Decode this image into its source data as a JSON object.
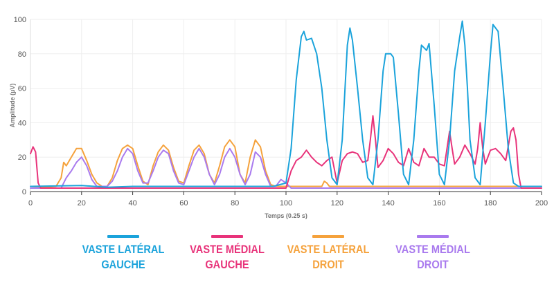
{
  "chart_data": {
    "type": "line",
    "title": "",
    "xlabel": "Temps (0.25 s)",
    "ylabel": "Amplitude (µV)",
    "xlim": [
      0,
      200
    ],
    "ylim": [
      0,
      100
    ],
    "x_ticks": [
      0,
      20,
      40,
      60,
      80,
      100,
      120,
      140,
      160,
      180,
      200
    ],
    "y_ticks": [
      0,
      20,
      40,
      60,
      80,
      100
    ],
    "grid": true,
    "legend_position": "bottom",
    "series": [
      {
        "name": "VASTE LATÉRAL GAUCHE",
        "label_lines": [
          "VASTE LATÉRAL",
          "GAUCHE"
        ],
        "color": "#1BA3DB",
        "points": [
          [
            0,
            3
          ],
          [
            20,
            3.5
          ],
          [
            30,
            2.5
          ],
          [
            40,
            3
          ],
          [
            60,
            3
          ],
          [
            80,
            3
          ],
          [
            95,
            3
          ],
          [
            100,
            5
          ],
          [
            102,
            25
          ],
          [
            104,
            65
          ],
          [
            106,
            90
          ],
          [
            107,
            93
          ],
          [
            108,
            88
          ],
          [
            110,
            89
          ],
          [
            112,
            80
          ],
          [
            114,
            60
          ],
          [
            116,
            30
          ],
          [
            118,
            8
          ],
          [
            120,
            4
          ],
          [
            122,
            30
          ],
          [
            124,
            85
          ],
          [
            125,
            95
          ],
          [
            126,
            88
          ],
          [
            128,
            60
          ],
          [
            130,
            30
          ],
          [
            132,
            8
          ],
          [
            134,
            4
          ],
          [
            136,
            30
          ],
          [
            138,
            70
          ],
          [
            139,
            80
          ],
          [
            141,
            80
          ],
          [
            142,
            78
          ],
          [
            144,
            45
          ],
          [
            146,
            10
          ],
          [
            148,
            4
          ],
          [
            150,
            30
          ],
          [
            152,
            70
          ],
          [
            153,
            85
          ],
          [
            155,
            82
          ],
          [
            156,
            86
          ],
          [
            158,
            50
          ],
          [
            160,
            10
          ],
          [
            162,
            4
          ],
          [
            164,
            30
          ],
          [
            166,
            70
          ],
          [
            168,
            90
          ],
          [
            169,
            99
          ],
          [
            170,
            85
          ],
          [
            171,
            60
          ],
          [
            172,
            30
          ],
          [
            174,
            8
          ],
          [
            176,
            4
          ],
          [
            178,
            40
          ],
          [
            180,
            80
          ],
          [
            181,
            97
          ],
          [
            183,
            93
          ],
          [
            185,
            60
          ],
          [
            187,
            25
          ],
          [
            189,
            5
          ],
          [
            191,
            3
          ],
          [
            200,
            3
          ]
        ]
      },
      {
        "name": "VASTE MÉDIAL GAUCHE",
        "label_lines": [
          "VASTE MÉDIAL",
          "GAUCHE"
        ],
        "color": "#E8337A",
        "points": [
          [
            0,
            22
          ],
          [
            1,
            26
          ],
          [
            2,
            23
          ],
          [
            3,
            5
          ],
          [
            4,
            2
          ],
          [
            20,
            2
          ],
          [
            60,
            2
          ],
          [
            100,
            2
          ],
          [
            102,
            12
          ],
          [
            104,
            18
          ],
          [
            106,
            20
          ],
          [
            108,
            24
          ],
          [
            110,
            20
          ],
          [
            112,
            17
          ],
          [
            114,
            15
          ],
          [
            116,
            18
          ],
          [
            118,
            20
          ],
          [
            120,
            5
          ],
          [
            122,
            18
          ],
          [
            124,
            22
          ],
          [
            126,
            23
          ],
          [
            128,
            22
          ],
          [
            130,
            17
          ],
          [
            132,
            18
          ],
          [
            133,
            30
          ],
          [
            134,
            44
          ],
          [
            135,
            30
          ],
          [
            136,
            14
          ],
          [
            138,
            18
          ],
          [
            140,
            25
          ],
          [
            142,
            22
          ],
          [
            144,
            17
          ],
          [
            146,
            15
          ],
          [
            148,
            25
          ],
          [
            150,
            17
          ],
          [
            152,
            15
          ],
          [
            154,
            25
          ],
          [
            156,
            20
          ],
          [
            158,
            20
          ],
          [
            160,
            16
          ],
          [
            162,
            15
          ],
          [
            163,
            25
          ],
          [
            164,
            35
          ],
          [
            165,
            25
          ],
          [
            166,
            16
          ],
          [
            168,
            20
          ],
          [
            170,
            27
          ],
          [
            172,
            22
          ],
          [
            174,
            16
          ],
          [
            175,
            25
          ],
          [
            176,
            40
          ],
          [
            177,
            25
          ],
          [
            178,
            16
          ],
          [
            180,
            24
          ],
          [
            182,
            25
          ],
          [
            184,
            22
          ],
          [
            186,
            18
          ],
          [
            188,
            35
          ],
          [
            189,
            37
          ],
          [
            190,
            30
          ],
          [
            191,
            10
          ],
          [
            192,
            2
          ],
          [
            200,
            2
          ]
        ]
      },
      {
        "name": "VASTE LATÉRAL DROIT",
        "label_lines": [
          "VASTE LATÉRAL",
          "DROIT"
        ],
        "color": "#F5A23C",
        "points": [
          [
            0,
            2
          ],
          [
            10,
            3
          ],
          [
            12,
            8
          ],
          [
            13,
            17
          ],
          [
            14,
            15
          ],
          [
            16,
            20
          ],
          [
            18,
            25
          ],
          [
            20,
            25
          ],
          [
            22,
            18
          ],
          [
            24,
            10
          ],
          [
            26,
            5
          ],
          [
            28,
            3
          ],
          [
            30,
            3
          ],
          [
            32,
            8
          ],
          [
            34,
            18
          ],
          [
            36,
            25
          ],
          [
            38,
            27
          ],
          [
            40,
            25
          ],
          [
            42,
            15
          ],
          [
            44,
            6
          ],
          [
            46,
            4
          ],
          [
            48,
            15
          ],
          [
            50,
            23
          ],
          [
            52,
            27
          ],
          [
            54,
            24
          ],
          [
            56,
            14
          ],
          [
            58,
            6
          ],
          [
            60,
            5
          ],
          [
            62,
            15
          ],
          [
            64,
            24
          ],
          [
            66,
            27
          ],
          [
            68,
            22
          ],
          [
            70,
            10
          ],
          [
            72,
            5
          ],
          [
            74,
            15
          ],
          [
            76,
            26
          ],
          [
            78,
            30
          ],
          [
            80,
            26
          ],
          [
            82,
            10
          ],
          [
            84,
            5
          ],
          [
            86,
            20
          ],
          [
            88,
            30
          ],
          [
            90,
            26
          ],
          [
            92,
            12
          ],
          [
            94,
            4
          ],
          [
            96,
            3
          ],
          [
            98,
            3
          ],
          [
            114,
            3
          ],
          [
            115,
            6
          ],
          [
            116,
            5
          ],
          [
            117,
            3
          ],
          [
            200,
            3
          ]
        ]
      },
      {
        "name": "VASTE MÉDIAL DROIT",
        "label_lines": [
          "VASTE MÉDIAL",
          "DROIT"
        ],
        "color": "#A97AEE",
        "points": [
          [
            0,
            2
          ],
          [
            12,
            2
          ],
          [
            14,
            8
          ],
          [
            16,
            12
          ],
          [
            18,
            17
          ],
          [
            20,
            20
          ],
          [
            22,
            15
          ],
          [
            24,
            7
          ],
          [
            26,
            3
          ],
          [
            30,
            3
          ],
          [
            32,
            6
          ],
          [
            34,
            12
          ],
          [
            36,
            20
          ],
          [
            38,
            25
          ],
          [
            40,
            22
          ],
          [
            42,
            12
          ],
          [
            44,
            5
          ],
          [
            46,
            5
          ],
          [
            48,
            12
          ],
          [
            50,
            20
          ],
          [
            52,
            24
          ],
          [
            54,
            22
          ],
          [
            56,
            12
          ],
          [
            58,
            5
          ],
          [
            60,
            4
          ],
          [
            62,
            12
          ],
          [
            64,
            20
          ],
          [
            66,
            25
          ],
          [
            68,
            20
          ],
          [
            70,
            10
          ],
          [
            72,
            4
          ],
          [
            74,
            10
          ],
          [
            76,
            20
          ],
          [
            78,
            25
          ],
          [
            80,
            20
          ],
          [
            82,
            10
          ],
          [
            84,
            4
          ],
          [
            86,
            10
          ],
          [
            88,
            23
          ],
          [
            90,
            20
          ],
          [
            92,
            10
          ],
          [
            94,
            3
          ],
          [
            96,
            3
          ],
          [
            98,
            7
          ],
          [
            100,
            5
          ],
          [
            102,
            2
          ],
          [
            200,
            2
          ]
        ]
      }
    ]
  }
}
